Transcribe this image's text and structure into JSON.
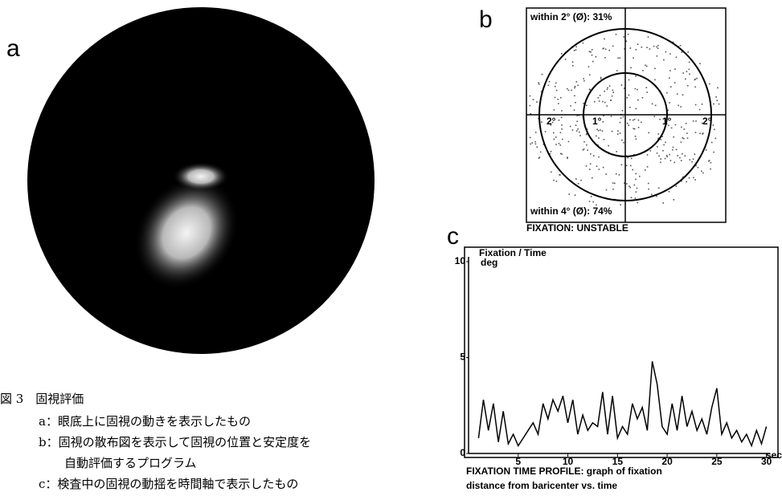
{
  "panel_a": {
    "label": "a"
  },
  "panel_b": {
    "label": "b",
    "top_text": "within 2° (Ø): 31%",
    "bottom_text": "within 4° (Ø): 74%",
    "status": "FIXATION: UNSTABLE",
    "ring_labels": [
      "2°",
      "1°",
      "1°",
      "2°"
    ]
  },
  "chart_data": {
    "type": "line",
    "label": "c",
    "title": "Fixation / Time",
    "y_unit": "deg",
    "x_unit": "sec",
    "x": [
      1,
      1.5,
      2,
      2.5,
      3,
      3.5,
      4,
      4.5,
      5,
      5.5,
      6,
      6.5,
      7,
      7.5,
      8,
      8.5,
      9,
      9.5,
      10,
      10.5,
      11,
      11.5,
      12,
      12.5,
      13,
      13.5,
      14,
      14.5,
      15,
      15.5,
      16,
      16.5,
      17,
      17.5,
      18,
      18.5,
      19,
      19.5,
      20,
      20.5,
      21,
      21.5,
      22,
      22.5,
      23,
      23.5,
      24,
      24.5,
      25,
      25.5,
      26,
      26.5,
      27,
      27.5,
      28,
      28.5,
      29,
      29.5,
      30
    ],
    "values": [
      0.8,
      2.8,
      1.2,
      2.6,
      0.6,
      2.2,
      0.5,
      1.0,
      0.4,
      0.8,
      1.2,
      1.6,
      1.0,
      2.6,
      1.8,
      2.8,
      2.2,
      3.0,
      1.6,
      2.8,
      1.0,
      2.0,
      1.2,
      1.6,
      1.4,
      3.2,
      1.0,
      3.0,
      0.8,
      1.4,
      1.0,
      2.6,
      1.8,
      2.4,
      1.2,
      4.8,
      3.6,
      1.4,
      1.0,
      2.6,
      1.2,
      3.0,
      1.4,
      2.2,
      1.2,
      1.8,
      1.0,
      2.4,
      3.4,
      1.0,
      1.6,
      0.8,
      1.2,
      0.6,
      1.0,
      0.4,
      1.2,
      0.5,
      1.4
    ],
    "color": "#000000",
    "xlim": [
      0,
      31
    ],
    "ylim": [
      0,
      10
    ],
    "xticks": [
      5,
      10,
      15,
      20,
      25,
      30
    ],
    "yticks": [
      0,
      5,
      10
    ],
    "caption": [
      "FIXATION TIME PROFILE: graph of fixation",
      "distance from baricenter vs. time"
    ]
  },
  "caption": {
    "title": "図 3　固視評価",
    "items": [
      "a：眼底上に固視の動きを表示したもの",
      "b：固視の散布図を表示して固視の位置と安定度を",
      "自動評価するプログラム",
      "c：検査中の固視の動揺を時間軸で表示したもの"
    ]
  }
}
